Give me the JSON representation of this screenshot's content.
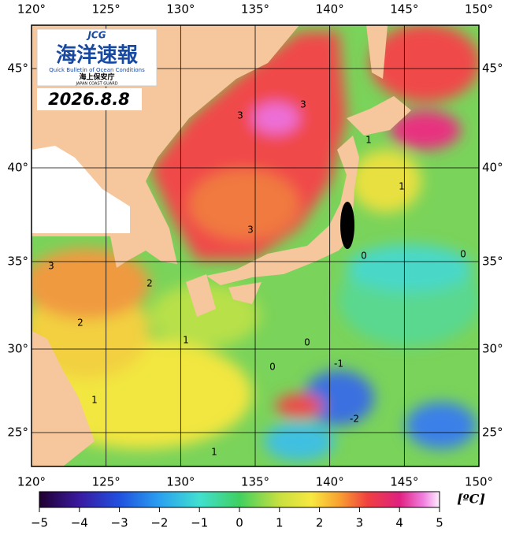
{
  "header": {
    "logo_mark": "JCG",
    "logo_title": "海洋速報",
    "logo_subtitle": "Quick Bulletin of Ocean Conditions",
    "logo_agency": "海上保安庁",
    "logo_agency_en": "JAPAN COAST GUARD",
    "date": "2026.8.8"
  },
  "map": {
    "lon_labels": [
      "120°",
      "125°",
      "130°",
      "135°",
      "140°",
      "145°",
      "150°"
    ],
    "lat_labels": [
      "45°",
      "40°",
      "35°",
      "30°",
      "25°"
    ],
    "contour_labels": [
      "3",
      "3",
      "3",
      "1",
      "1",
      "3",
      "2",
      "2",
      "0",
      "0",
      "0",
      "-1",
      "-2",
      "1",
      "1",
      "0",
      "1"
    ]
  },
  "colorbar": {
    "ticks": [
      "−5",
      "−4",
      "−3",
      "−2",
      "−1",
      "0",
      "1",
      "2",
      "3",
      "4",
      "5"
    ],
    "unit": "[ºC]"
  }
}
